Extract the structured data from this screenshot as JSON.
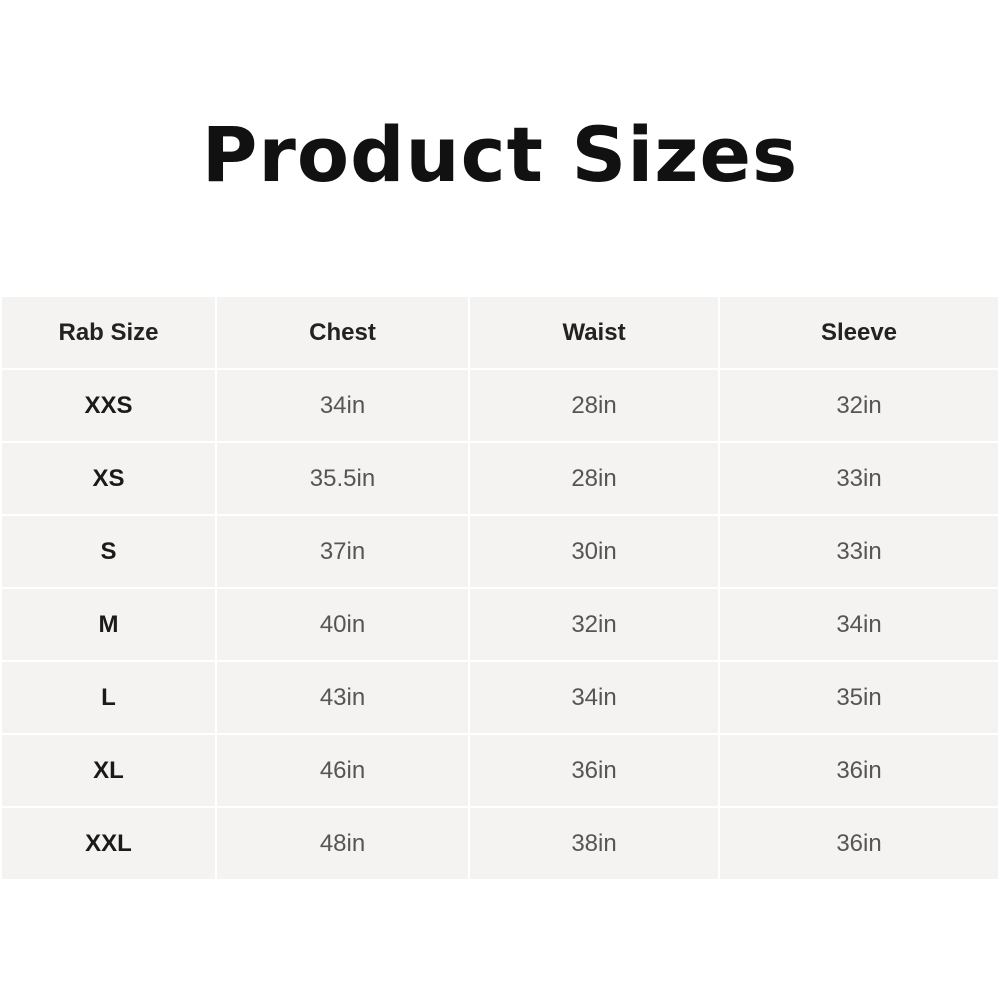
{
  "title": "Product Sizes",
  "table": {
    "headers": [
      "Rab Size",
      "Chest",
      "Waist",
      "Sleeve"
    ],
    "rows": [
      [
        "XXS",
        "34in",
        "28in",
        "32in"
      ],
      [
        "XS",
        "35.5in",
        "28in",
        "33in"
      ],
      [
        "S",
        "37in",
        "30in",
        "33in"
      ],
      [
        "M",
        "40in",
        "32in",
        "34in"
      ],
      [
        "L",
        "43in",
        "34in",
        "35in"
      ],
      [
        "XL",
        "46in",
        "36in",
        "36in"
      ],
      [
        "XXL",
        "48in",
        "38in",
        "36in"
      ]
    ]
  }
}
